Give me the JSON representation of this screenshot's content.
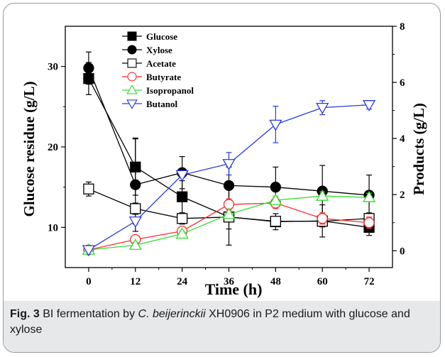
{
  "caption": {
    "label": "Fig. 3",
    "text_before": "BI fermentation by ",
    "organism": "C. beijerinckii",
    "text_after": " XH0906 in P2 medium with glucose and xylose"
  },
  "chart_data": {
    "type": "line",
    "xlabel": "Time (h)",
    "ylabel_left": "Glucose residue (g/L)",
    "ylabel_right": "Products (g/L)",
    "x_ticks": [
      0,
      12,
      24,
      36,
      48,
      60,
      72
    ],
    "y_left_ticks": [
      10,
      20,
      30
    ],
    "y_right_ticks": [
      0,
      2,
      4,
      6,
      8
    ],
    "y_left_range": [
      5,
      35
    ],
    "y_right_range": [
      -0.6,
      8
    ],
    "x_range": [
      -6,
      78
    ],
    "legend_position": "top-left",
    "grid": false,
    "series": [
      {
        "name": "Glucose",
        "axis": "left",
        "color": "#000000",
        "marker": "square-filled",
        "x": [
          0,
          12,
          24,
          36,
          48,
          60,
          72
        ],
        "y": [
          28.5,
          17.5,
          13.8,
          11.3,
          10.7,
          10.8,
          10.0
        ],
        "err": [
          2.0,
          3.5,
          2.0,
          1.5,
          1.0,
          2.0,
          1.0
        ]
      },
      {
        "name": "Xylose",
        "axis": "left",
        "color": "#000000",
        "marker": "circle-filled",
        "x": [
          0,
          12,
          24,
          36,
          48,
          60,
          72
        ],
        "y": [
          29.8,
          15.3,
          16.8,
          15.2,
          15.0,
          14.5,
          14.0
        ],
        "err": [
          2.0,
          5.8,
          2.0,
          2.3,
          2.5,
          3.2,
          2.5
        ]
      },
      {
        "name": "Acetate",
        "axis": "right",
        "color": "#000000",
        "marker": "square-open",
        "x": [
          0,
          12,
          24,
          36,
          48,
          60,
          72
        ],
        "y": [
          2.2,
          1.5,
          1.15,
          1.2,
          1.05,
          1.05,
          1.15
        ],
        "err": [
          0.25,
          0.2,
          0.2,
          1.0,
          0.15,
          0.2,
          0.2
        ]
      },
      {
        "name": "Butyrate",
        "axis": "right",
        "color": "#ff2a2a",
        "marker": "circle-open",
        "x": [
          0,
          12,
          24,
          36,
          48,
          60,
          72
        ],
        "y": [
          0.03,
          0.4,
          0.7,
          1.65,
          1.7,
          1.15,
          1.0
        ],
        "err": [
          0.05,
          0.05,
          0.05,
          0.2,
          0.2,
          0.2,
          0.2
        ]
      },
      {
        "name": "Isopropanol",
        "axis": "right",
        "color": "#33dd33",
        "marker": "triangle-up-open",
        "x": [
          0,
          12,
          24,
          36,
          48,
          60,
          72
        ],
        "y": [
          0.03,
          0.2,
          0.6,
          1.3,
          1.8,
          1.95,
          1.9
        ],
        "err": [
          0.05,
          0.1,
          0.1,
          0.1,
          0.15,
          0.15,
          0.15
        ]
      },
      {
        "name": "Butanol",
        "axis": "right",
        "color": "#2a3adf",
        "marker": "triangle-down-open",
        "x": [
          0,
          12,
          24,
          36,
          48,
          60,
          72
        ],
        "y": [
          0.03,
          1.05,
          2.7,
          3.1,
          4.5,
          5.1,
          5.2
        ],
        "err": [
          0.05,
          0.1,
          0.1,
          0.4,
          0.65,
          0.25,
          0.15
        ]
      }
    ]
  }
}
